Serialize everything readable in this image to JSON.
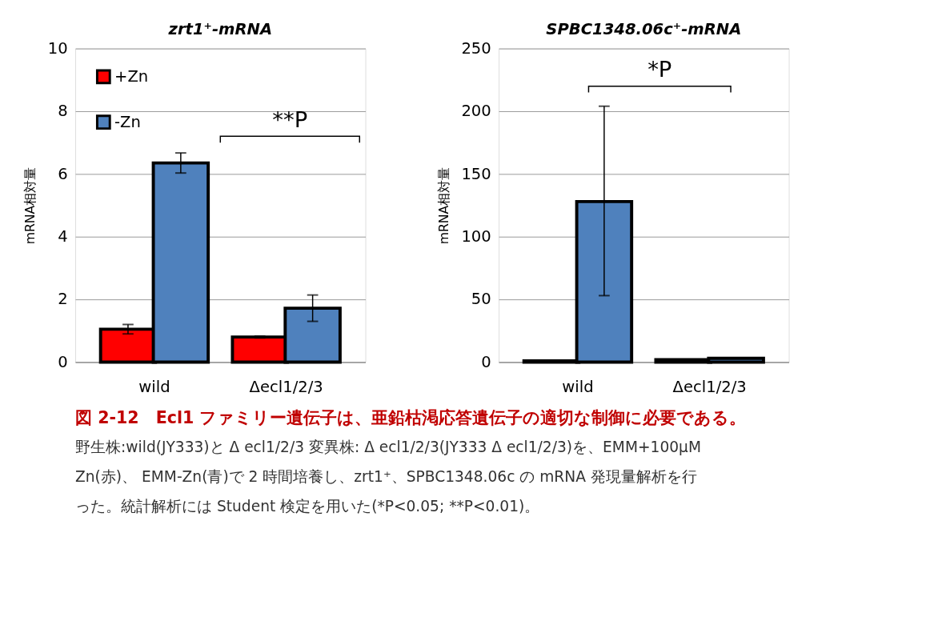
{
  "chart_data": [
    {
      "type": "bar",
      "title": "zrt1⁺-mRNA",
      "ylabel": "mRNA相対量",
      "categories": [
        "wild",
        "Δecl1/2/3"
      ],
      "series": [
        {
          "name": "+Zn",
          "color": "#ff0000",
          "values": [
            1.05,
            0.8
          ],
          "errors": [
            0.15,
            0.03
          ]
        },
        {
          "name": "-Zn",
          "color": "#4f81bd",
          "values": [
            6.35,
            1.72
          ],
          "errors": [
            0.32,
            0.42
          ]
        }
      ],
      "ylim": [
        0,
        10
      ],
      "yticks": [
        0,
        2,
        4,
        6,
        8,
        10
      ],
      "grid": "y",
      "legend": "top left",
      "annotations": [
        "**P"
      ]
    },
    {
      "type": "bar",
      "title": "SPBC1348.06c⁺-mRNA",
      "ylabel": "mRNA相対量",
      "categories": [
        "wild",
        "Δecl1/2/3"
      ],
      "series": [
        {
          "name": "+Zn",
          "color": "#ff0000",
          "values": [
            1,
            2
          ]
        },
        {
          "name": "-Zn",
          "color": "#4f81bd",
          "values": [
            128,
            3
          ],
          "errors": [
            [
              53,
              204
            ],
            null
          ]
        }
      ],
      "ylim": [
        0,
        250
      ],
      "yticks": [
        0,
        50,
        100,
        150,
        200,
        250
      ],
      "grid": "y",
      "legend": "top left",
      "annotations": [
        "*P"
      ]
    },
    {
      "type": "other",
      "annotations": [
        "図 2-12　Ecl1 ファミリー遺伝子は、亜鉛枯渇応答遺伝子の適切な制御に必要である。",
        "野生株:wild(JY333)と Δ ecl1/2/3 変異株: Δ ecl1/2/3(JY333 Δ ecl1/2/3)を、EMM+100μM",
        "Zn(赤)、 EMM-Zn(青)で 2 時間培養し、zrt1⁺、SPBC1348.06c の mRNA 発現量解析を行",
        "った。統計解析には Student 検定を用いた(*P<0.05; **P<0.01)。"
      ]
    }
  ]
}
